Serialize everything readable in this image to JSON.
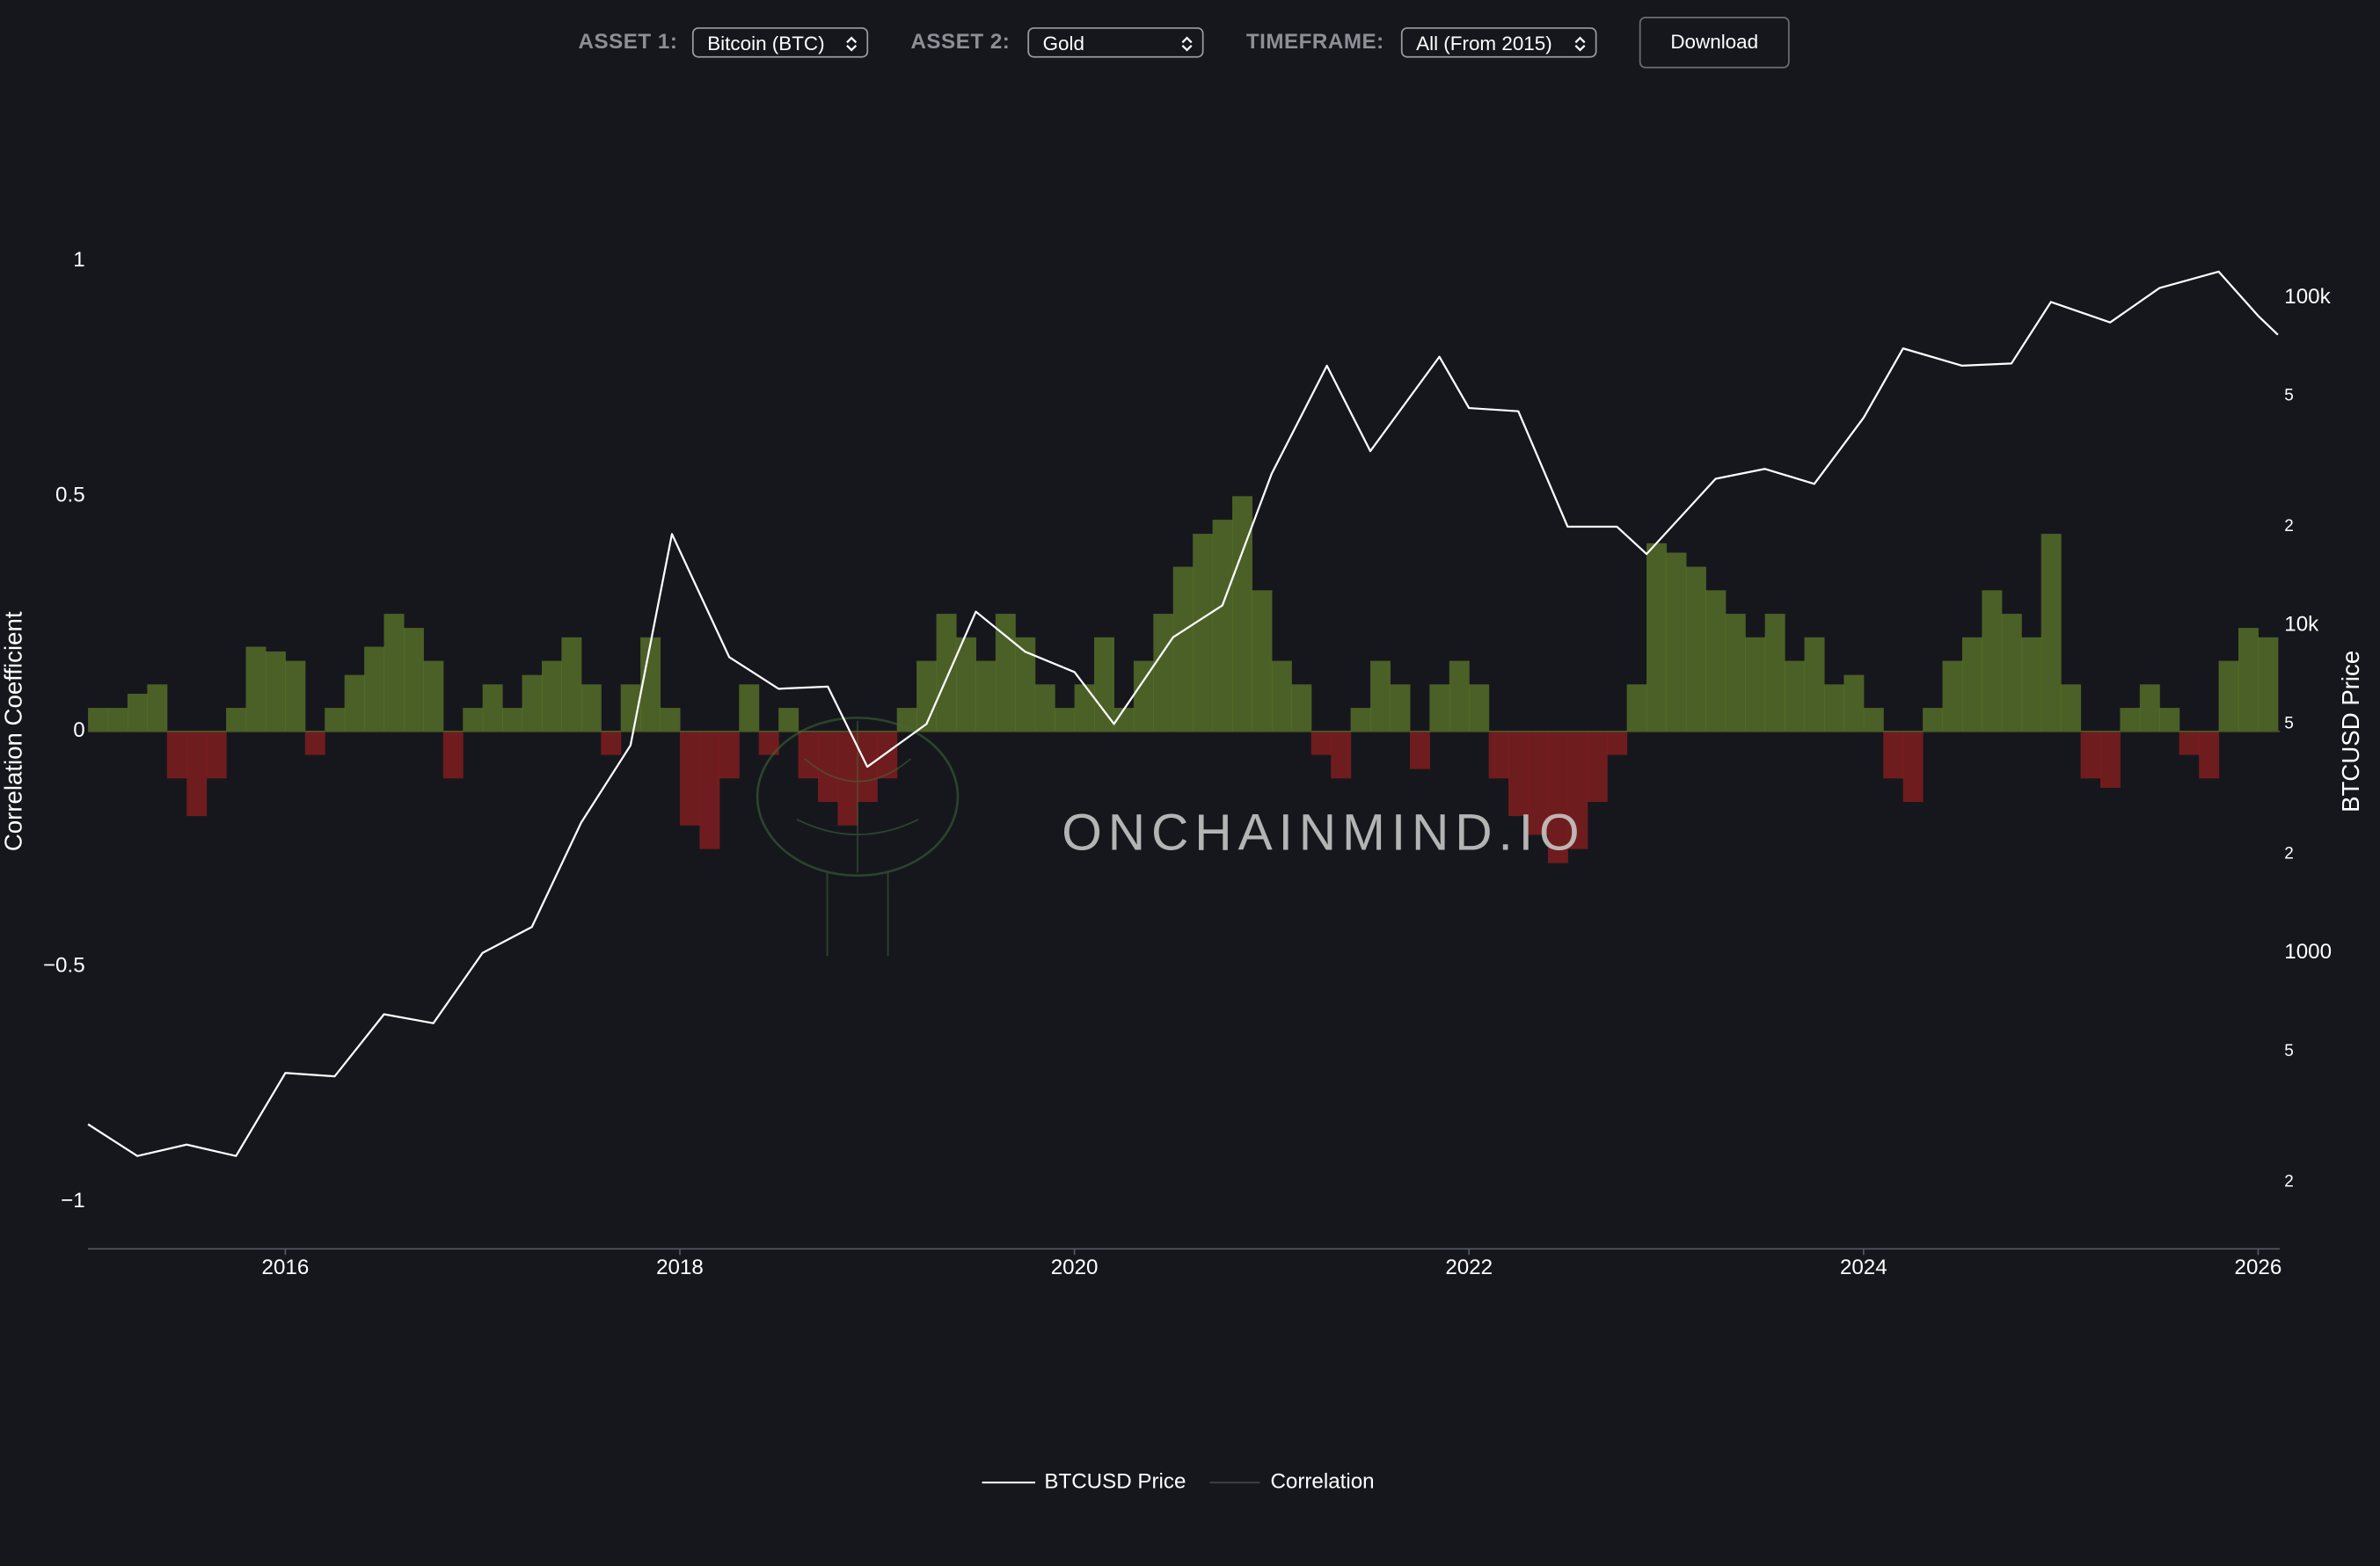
{
  "controls": {
    "asset1_label": "ASSET 1:",
    "asset1_value": "Bitcoin (BTC)",
    "asset2_label": "ASSET 2:",
    "asset2_value": "Gold",
    "timeframe_label": "TIMEFRAME:",
    "timeframe_value": "All (From 2015)",
    "download": "Download"
  },
  "watermark": "ONCHAINMIND.IO",
  "chart_data": {
    "type": "bar-line",
    "ylabel": "Correlation Coefficient",
    "y2label": "BTCUSD Price",
    "xlim": [
      2015,
      2026.11
    ],
    "xticks": [
      2016,
      2018,
      2020,
      2022,
      2024,
      2026
    ],
    "ylim": [
      -1.1,
      1.1
    ],
    "yticks": [
      {
        "value": -1,
        "label": "−1"
      },
      {
        "value": -0.5,
        "label": "−0.5"
      },
      0,
      0.5,
      1
    ],
    "y2log": true,
    "y2lim": [
      125,
      180000
    ],
    "y2ticks": [
      {
        "value": 200,
        "label": "2"
      },
      {
        "value": 500,
        "label": "5"
      },
      1000,
      {
        "value": 2000,
        "label": "2"
      },
      {
        "value": 5000,
        "label": "5"
      },
      {
        "value": 10000,
        "label": "10k"
      },
      {
        "value": 20000,
        "label": "2"
      },
      {
        "value": 50000,
        "label": "5"
      },
      {
        "value": 100000,
        "label": "100k"
      }
    ],
    "series": [
      {
        "name": "BTCUSD Price",
        "type": "line",
        "axis": "y2",
        "color": "#ffffff",
        "x": [
          2015.0,
          2015.25,
          2015.5,
          2015.75,
          2016.0,
          2016.25,
          2016.5,
          2016.75,
          2017.0,
          2017.25,
          2017.5,
          2017.75,
          2017.96,
          2018.25,
          2018.5,
          2018.75,
          2018.95,
          2019.25,
          2019.5,
          2019.75,
          2020.0,
          2020.2,
          2020.5,
          2020.75,
          2021.0,
          2021.28,
          2021.5,
          2021.85,
          2022.0,
          2022.25,
          2022.5,
          2022.75,
          2022.9,
          2023.25,
          2023.5,
          2023.75,
          2024.0,
          2024.2,
          2024.5,
          2024.75,
          2024.95,
          2025.25,
          2025.5,
          2025.8,
          2026.0,
          2026.1
        ],
        "values": [
          300,
          240,
          260,
          240,
          430,
          420,
          650,
          610,
          1000,
          1200,
          2500,
          4300,
          19000,
          8000,
          6400,
          6500,
          3700,
          5000,
          11000,
          8300,
          7200,
          5000,
          9200,
          11500,
          29000,
          62000,
          34000,
          66000,
          46000,
          45000,
          20000,
          20000,
          16500,
          28000,
          30000,
          27000,
          43000,
          70000,
          62000,
          63000,
          97000,
          84000,
          107000,
          120000,
          88000,
          77000
        ]
      },
      {
        "name": "Correlation",
        "type": "bar",
        "axis": "y",
        "color": "#5d7a2a",
        "negative_color": "#8e1f1f",
        "x": [
          2015.0,
          2015.1,
          2015.2,
          2015.3,
          2015.4,
          2015.5,
          2015.6,
          2015.7,
          2015.8,
          2015.9,
          2016.0,
          2016.1,
          2016.2,
          2016.3,
          2016.4,
          2016.5,
          2016.6,
          2016.7,
          2016.8,
          2016.9,
          2017.0,
          2017.1,
          2017.2,
          2017.3,
          2017.4,
          2017.5,
          2017.6,
          2017.7,
          2017.8,
          2017.9,
          2018.0,
          2018.1,
          2018.2,
          2018.3,
          2018.4,
          2018.5,
          2018.6,
          2018.7,
          2018.8,
          2018.9,
          2019.0,
          2019.1,
          2019.2,
          2019.3,
          2019.4,
          2019.5,
          2019.6,
          2019.7,
          2019.8,
          2019.9,
          2020.0,
          2020.1,
          2020.2,
          2020.3,
          2020.4,
          2020.5,
          2020.6,
          2020.7,
          2020.8,
          2020.9,
          2021.0,
          2021.1,
          2021.2,
          2021.3,
          2021.4,
          2021.5,
          2021.6,
          2021.7,
          2021.8,
          2021.9,
          2022.0,
          2022.1,
          2022.2,
          2022.3,
          2022.4,
          2022.5,
          2022.6,
          2022.7,
          2022.8,
          2022.9,
          2023.0,
          2023.1,
          2023.2,
          2023.3,
          2023.4,
          2023.5,
          2023.6,
          2023.7,
          2023.8,
          2023.9,
          2024.0,
          2024.1,
          2024.2,
          2024.3,
          2024.4,
          2024.5,
          2024.6,
          2024.7,
          2024.8,
          2024.9,
          2025.0,
          2025.1,
          2025.2,
          2025.3,
          2025.4,
          2025.5,
          2025.6,
          2025.7,
          2025.8,
          2025.9,
          2026.0
        ],
        "values": [
          0.05,
          0.05,
          0.08,
          0.1,
          -0.1,
          -0.18,
          -0.1,
          0.05,
          0.18,
          0.17,
          0.15,
          -0.05,
          0.05,
          0.12,
          0.18,
          0.25,
          0.22,
          0.15,
          -0.1,
          0.05,
          0.1,
          0.05,
          0.12,
          0.15,
          0.2,
          0.1,
          -0.05,
          0.1,
          0.2,
          0.05,
          -0.2,
          -0.25,
          -0.1,
          0.1,
          -0.05,
          0.05,
          -0.1,
          -0.15,
          -0.2,
          -0.15,
          -0.1,
          0.05,
          0.15,
          0.25,
          0.2,
          0.15,
          0.25,
          0.2,
          0.1,
          0.05,
          0.1,
          0.2,
          0.05,
          0.15,
          0.25,
          0.35,
          0.42,
          0.45,
          0.5,
          0.3,
          0.15,
          0.1,
          -0.05,
          -0.1,
          0.05,
          0.15,
          0.1,
          -0.08,
          0.1,
          0.15,
          0.1,
          -0.1,
          -0.18,
          -0.22,
          -0.28,
          -0.25,
          -0.15,
          -0.05,
          0.1,
          0.4,
          0.38,
          0.35,
          0.3,
          0.25,
          0.2,
          0.25,
          0.15,
          0.2,
          0.1,
          0.12,
          0.05,
          -0.1,
          -0.15,
          0.05,
          0.15,
          0.2,
          0.3,
          0.25,
          0.2,
          0.42,
          0.1,
          -0.1,
          -0.12,
          0.05,
          0.1,
          0.05,
          -0.05,
          -0.1,
          0.15,
          0.22,
          0.2
        ]
      }
    ]
  }
}
